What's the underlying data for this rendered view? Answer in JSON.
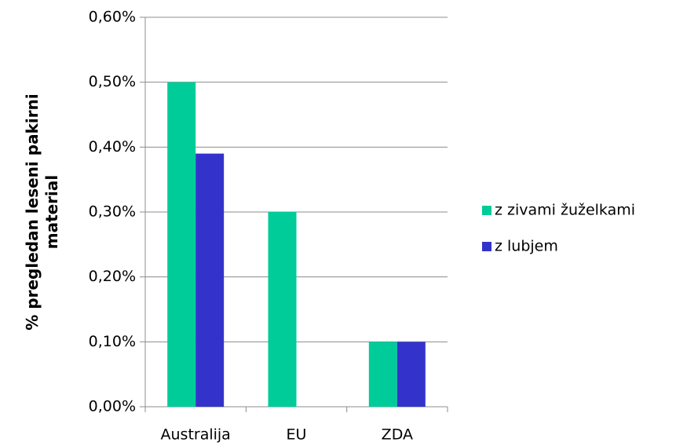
{
  "chart_data": {
    "type": "bar",
    "y_label": "% pregledan leseni pakirni material",
    "categories": [
      "Australija",
      "EU",
      "ZDA"
    ],
    "series": [
      {
        "name": "z zivami žuželkami",
        "color": "#00cc99",
        "values": [
          0.5,
          0.3,
          0.1
        ]
      },
      {
        "name": "z lubjem",
        "color": "#3333cc",
        "values": [
          0.39,
          null,
          0.1
        ]
      }
    ],
    "ylim": [
      0,
      0.6
    ],
    "yticks": [
      {
        "value": 0,
        "label": "0,00%"
      },
      {
        "value": 0.1,
        "label": "0,10%"
      },
      {
        "value": 0.2,
        "label": "0,20%"
      },
      {
        "value": 0.3,
        "label": "0,30%"
      },
      {
        "value": 0.4,
        "label": "0,40%"
      },
      {
        "value": 0.5,
        "label": "0,50%"
      },
      {
        "value": 0.6,
        "label": "0,60%"
      }
    ],
    "grid": true,
    "legend": "right"
  }
}
